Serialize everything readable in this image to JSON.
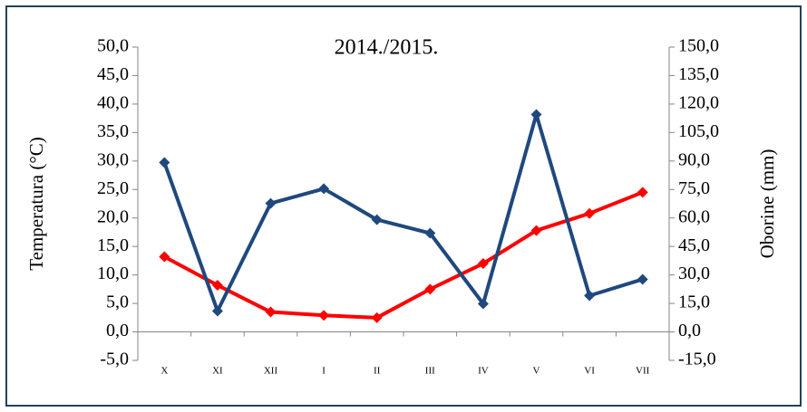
{
  "chart_data": {
    "type": "line",
    "title": "2014./2015.",
    "categories": [
      "X",
      "XI",
      "XII",
      "I",
      "II",
      "III",
      "IV",
      "V",
      "VI",
      "VII"
    ],
    "y_label": "Temperatura (°C)",
    "y2_label": "Oborine (mm)",
    "series": [
      {
        "name": "Temperatura",
        "color": "#ff0000",
        "values": [
          13.2,
          8.2,
          3.5,
          2.9,
          2.5,
          7.5,
          12.0,
          17.8,
          20.8,
          24.5
        ]
      },
      {
        "name": "Oborine",
        "color": "#1f497d",
        "axis": "y2",
        "values": [
          89.2,
          11.0,
          67.7,
          75.4,
          59.1,
          52.0,
          14.8,
          114.5,
          19.1,
          27.7
        ]
      }
    ],
    "ylim": [
      -5,
      50
    ],
    "yticks": [
      {
        "value": -5,
        "label": "-5,0"
      },
      {
        "value": 0,
        "label": "0,0"
      },
      {
        "value": 5,
        "label": "5,0"
      },
      {
        "value": 10,
        "label": "10,0"
      },
      {
        "value": 15,
        "label": "15,0"
      },
      {
        "value": 20,
        "label": "20,0"
      },
      {
        "value": 25,
        "label": "25,0"
      },
      {
        "value": 30,
        "label": "30,0"
      },
      {
        "value": 35,
        "label": "35,0"
      },
      {
        "value": 40,
        "label": "40,0"
      },
      {
        "value": 45,
        "label": "45,0"
      },
      {
        "value": 50,
        "label": "50,0"
      }
    ],
    "y2lim": [
      -15,
      150
    ],
    "y2ticks": [
      {
        "value": -15,
        "label": "-15,0"
      },
      {
        "value": 0,
        "label": "0,0"
      },
      {
        "value": 15,
        "label": "15,0"
      },
      {
        "value": 30,
        "label": "30,0"
      },
      {
        "value": 45,
        "label": "45,0"
      },
      {
        "value": 60,
        "label": "60,0"
      },
      {
        "value": 75,
        "label": "75,0"
      },
      {
        "value": 90,
        "label": "90,0"
      },
      {
        "value": 105,
        "label": "105,0"
      },
      {
        "value": 120,
        "label": "120,0"
      },
      {
        "value": 135,
        "label": "135,0"
      },
      {
        "value": 150,
        "label": "150,0"
      }
    ],
    "grid": false
  }
}
